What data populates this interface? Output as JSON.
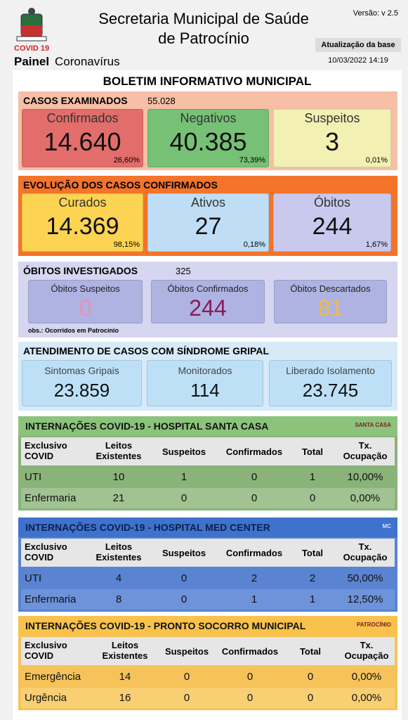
{
  "header": {
    "covid": "COVID 19",
    "painel": "Painel",
    "subtitle": "Coronavírus",
    "title": [
      "Secretaria Municipal de Saúde",
      "de Patrocínio"
    ],
    "version": "Versão: v 2.5",
    "update_label": "Atualização da base",
    "update_time": "10/03/2022 14:19"
  },
  "bulletin_title": "BOLETIM INFORMATIVO MUNICIPAL",
  "cases_examined": {
    "title": "CASOS EXAMINADOS",
    "total": "55.028",
    "cards": [
      {
        "label": "Confirmados",
        "value": "14.640",
        "percent": "26,60%"
      },
      {
        "label": "Negativos",
        "value": "40.385",
        "percent": "73,39%"
      },
      {
        "label": "Suspeitos",
        "value": "3",
        "percent": "0,01%"
      }
    ]
  },
  "evolution": {
    "title": "EVOLUÇÃO DOS CASOS CONFIRMADOS",
    "cards": [
      {
        "label": "Curados",
        "value": "14.369",
        "percent": "98,15%"
      },
      {
        "label": "Ativos",
        "value": "27",
        "percent": "0,18%"
      },
      {
        "label": "Óbitos",
        "value": "244",
        "percent": "1,67%"
      }
    ]
  },
  "deaths_investigated": {
    "title": "ÓBITOS INVESTIGADOS",
    "total": "325",
    "cards": [
      {
        "label": "Óbitos Suspeitos",
        "value": "0"
      },
      {
        "label": "Óbitos Confirmados",
        "value": "244"
      },
      {
        "label": "Óbitos Descartados",
        "value": "81"
      }
    ],
    "note": "obs.: Ocorridos em Patrocínio"
  },
  "flu_syndrome": {
    "title": "ATENDIMENTO DE CASOS COM SÍNDROME GRIPAL",
    "cards": [
      {
        "label": "Sintomas Gripais",
        "value": "23.859"
      },
      {
        "label": "Monitorados",
        "value": "114"
      },
      {
        "label": "Liberado Isolamento",
        "value": "23.745"
      }
    ]
  },
  "hospitals": [
    {
      "title": "INTERNAÇÕES COVID-19 - HOSPITAL SANTA CASA",
      "logo": "SANTA CASA",
      "columns": [
        [
          "Exclusivo",
          "COVID"
        ],
        [
          "Leitos",
          "Existentes"
        ],
        [
          "Suspeitos"
        ],
        [
          "Confirmados"
        ],
        [
          "Total"
        ],
        [
          "Tx.",
          "Ocupação"
        ]
      ],
      "rows": [
        [
          "UTI",
          "10",
          "1",
          "0",
          "1",
          "10,00%"
        ],
        [
          "Enfermaria",
          "21",
          "0",
          "0",
          "0",
          "0,00%"
        ]
      ]
    },
    {
      "title": "INTERNAÇÕES COVID-19 - HOSPITAL MED CENTER",
      "logo": "MC",
      "columns": [
        [
          "Exclusivo",
          "COVID"
        ],
        [
          "Leitos",
          "Existentes"
        ],
        [
          "Suspeitos"
        ],
        [
          "Confirmados"
        ],
        [
          "Total"
        ],
        [
          "Tx.",
          "Ocupação"
        ]
      ],
      "rows": [
        [
          "UTI",
          "4",
          "0",
          "2",
          "2",
          "50,00%"
        ],
        [
          "Enfermaria",
          "8",
          "0",
          "1",
          "1",
          "12,50%"
        ]
      ]
    },
    {
      "title": "INTERNAÇÕES COVID-19 - PRONTO SOCORRO MUNICIPAL",
      "logo": "PATROCÍNIO",
      "columns": [
        [
          "Exclusivo",
          "COVID"
        ],
        [
          "Leitos",
          "Existentes"
        ],
        [
          "Suspeitos"
        ],
        [
          "Confirmados"
        ],
        [
          "Total"
        ],
        [
          "Tx.",
          "Ocupação"
        ]
      ],
      "rows": [
        [
          "Emergência",
          "14",
          "0",
          "0",
          "0",
          "0,00%"
        ],
        [
          "Urgência",
          "16",
          "0",
          "0",
          "0",
          "0,00%"
        ]
      ]
    }
  ]
}
